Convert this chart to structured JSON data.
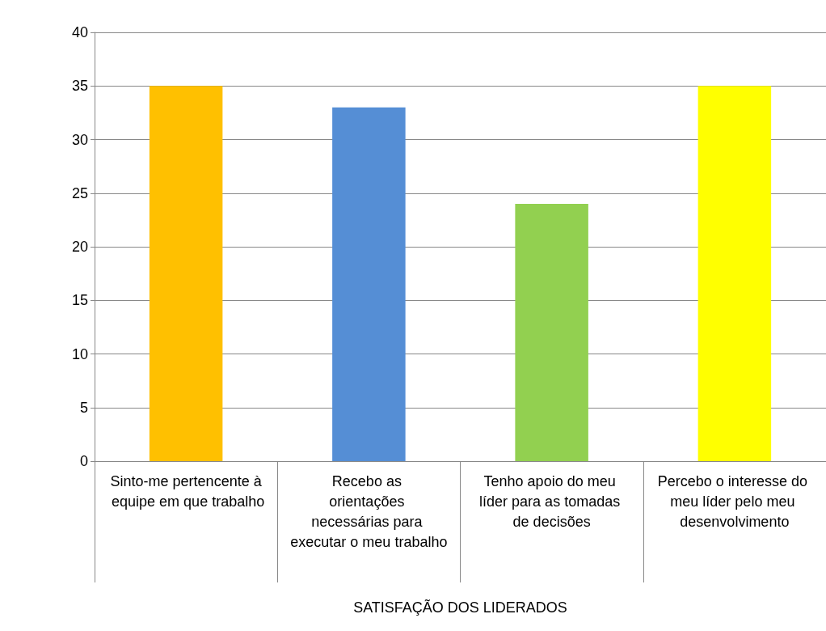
{
  "chart_data": {
    "type": "bar",
    "xlabel": "SATISFAÇÃO DOS LIDERADOS",
    "categories": [
      "Sinto-me pertencente à equipe em que trabalho",
      "Recebo as orientações necessárias para executar o meu trabalho",
      "Tenho apoio do meu líder para as tomadas de decisões",
      "Percebo o interesse do meu líder pelo meu desenvolvimento"
    ],
    "values": [
      35,
      33,
      24,
      35
    ],
    "colors": [
      "#ffc000",
      "#558ed5",
      "#92d050",
      "#ffff00"
    ],
    "ylim": [
      0,
      40
    ],
    "yticks": [
      0,
      5,
      10,
      15,
      20,
      25,
      30,
      35,
      40
    ],
    "grid": "y"
  }
}
